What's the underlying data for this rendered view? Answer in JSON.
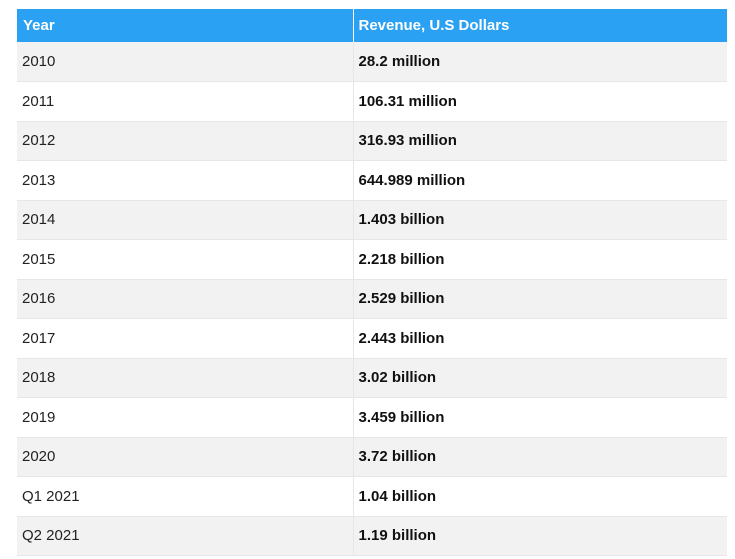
{
  "table": {
    "header": {
      "year": "Year",
      "revenue": "Revenue, U.S Dollars"
    },
    "rows": [
      {
        "year": "2010",
        "revenue": "28.2 million"
      },
      {
        "year": "2011",
        "revenue": "106.31 million"
      },
      {
        "year": "2012",
        "revenue": "316.93 million"
      },
      {
        "year": "2013",
        "revenue": "644.989 million"
      },
      {
        "year": "2014",
        "revenue": "1.403 billion"
      },
      {
        "year": "2015",
        "revenue": "2.218 billion"
      },
      {
        "year": "2016",
        "revenue": "2.529 billion"
      },
      {
        "year": "2017",
        "revenue": "2.443 billion"
      },
      {
        "year": "2018",
        "revenue": "3.02 billion"
      },
      {
        "year": "2019",
        "revenue": "3.459 billion"
      },
      {
        "year": "2020",
        "revenue": "3.72 billion"
      },
      {
        "year": "Q1 2021",
        "revenue": "1.04 billion"
      },
      {
        "year": "Q2 2021",
        "revenue": "1.19 billion"
      }
    ]
  },
  "colors": {
    "header_background": "#2aa1f2",
    "header_text": "#ffffff",
    "row_stripe": "#f2f2f2"
  }
}
